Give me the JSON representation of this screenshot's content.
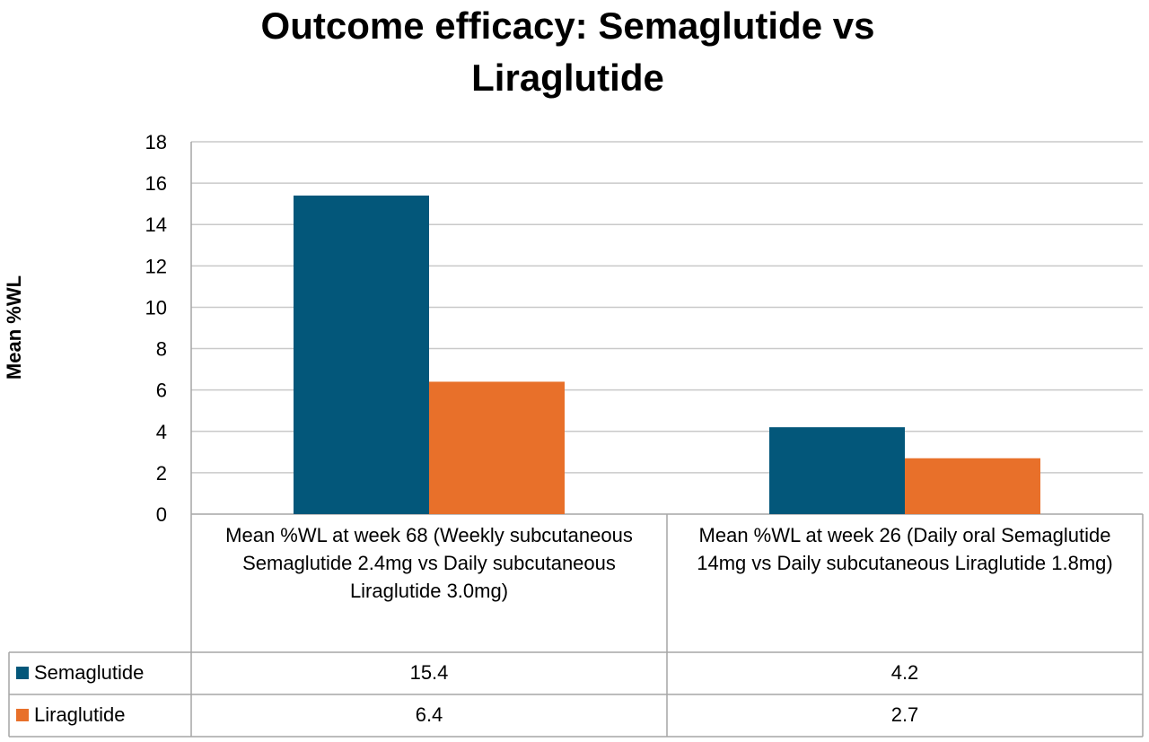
{
  "chart_data": {
    "type": "bar",
    "title": "Outcome efficacy: Semaglutide vs Liraglutide",
    "ylabel": "Mean %WL",
    "xlabel": "",
    "ylim": [
      0,
      18
    ],
    "yticks": [
      "0",
      "2",
      "4",
      "6",
      "8",
      "10",
      "12",
      "14",
      "16",
      "18"
    ],
    "grid": true,
    "legend_placement": "data-table",
    "categories": [
      "Mean %WL at week 68 (Weekly subcutaneous Semaglutide 2.4mg vs Daily subcutaneous Liraglutide 3.0mg)",
      "Mean %WL at week 26 (Daily oral Semaglutide 14mg vs Daily subcutaneous Liraglutide 1.8mg)"
    ],
    "series": [
      {
        "name": "Semaglutide",
        "values": [
          15.4,
          4.2
        ],
        "value_labels": [
          "15.4",
          "4.2"
        ],
        "color": "#03577A"
      },
      {
        "name": "Liraglutide",
        "values": [
          6.4,
          2.7
        ],
        "value_labels": [
          "6.4",
          "2.7"
        ],
        "color": "#E8702A"
      }
    ]
  }
}
